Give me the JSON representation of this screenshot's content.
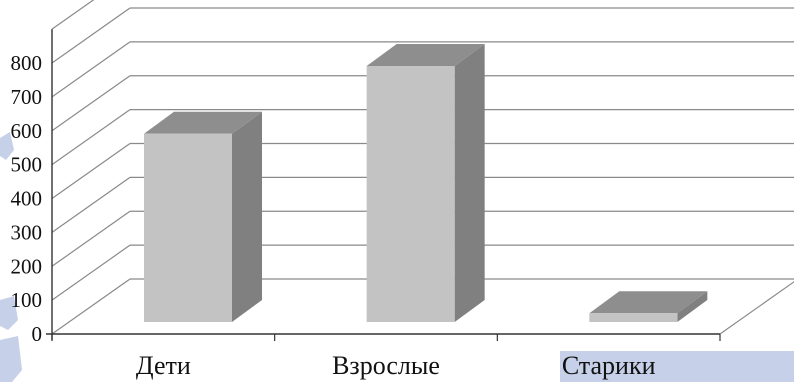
{
  "chart_data": {
    "type": "bar",
    "style": "3d-column",
    "categories": [
      "Дети",
      "Взрослые",
      "Старики"
    ],
    "values": [
      600,
      800,
      70
    ],
    "ylim": [
      0,
      900
    ],
    "yticks": [
      0,
      100,
      200,
      300,
      400,
      500,
      600,
      700,
      800
    ],
    "ytick_labels": [
      "0",
      "100",
      "200",
      "300",
      "400",
      "500",
      "600",
      "700",
      "800"
    ],
    "grid": true,
    "legend": "none",
    "colors": {
      "bar_front": "#c3c3c3",
      "bar_side": "#808080",
      "bar_top": "#8e8e8e",
      "grid": "#8a8a8a",
      "axis": "#333333",
      "decor_blue": "#c6d0e8"
    }
  }
}
